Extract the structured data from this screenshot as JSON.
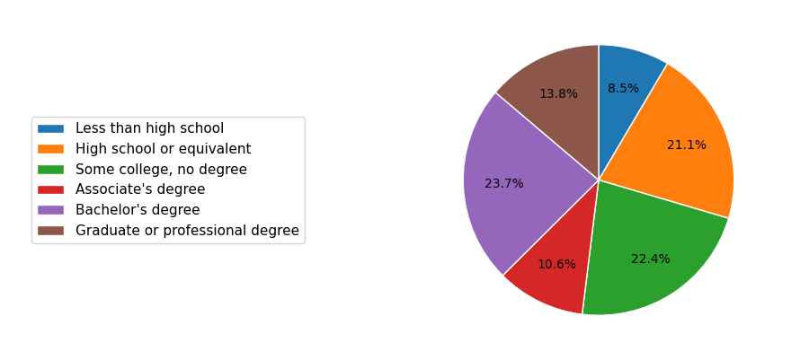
{
  "chart_data": {
    "type": "pie",
    "categories": [
      "Less than high school",
      "High school or equivalent",
      "Some college, no degree",
      "Associate's degree",
      "Bachelor's degree",
      "Graduate or professional degree"
    ],
    "values": [
      8.5,
      21.1,
      22.4,
      10.6,
      23.7,
      13.8
    ],
    "value_labels": [
      "8.5%",
      "21.1%",
      "22.4%",
      "10.6%",
      "23.7%",
      "13.8%"
    ],
    "data_labels": true,
    "legend": "center left"
  }
}
